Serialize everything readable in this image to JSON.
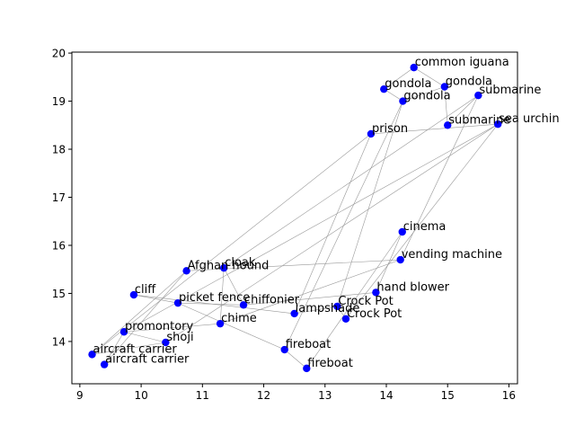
{
  "chart_data": {
    "type": "scatter",
    "title": "",
    "xlabel": "",
    "ylabel": "",
    "xlim": [
      8.87,
      16.14
    ],
    "ylim": [
      13.12,
      20.02
    ],
    "xticks": [
      9,
      10,
      11,
      12,
      13,
      14,
      15,
      16
    ],
    "yticks": [
      14,
      15,
      16,
      17,
      18,
      19,
      20
    ],
    "grid": false,
    "legend": "none",
    "point_color": "#0000ff",
    "edge_color": "#999999",
    "points": [
      {
        "label": "common iguana",
        "x": 14.45,
        "y": 19.7
      },
      {
        "label": "gondola",
        "x": 14.95,
        "y": 19.3
      },
      {
        "label": "gondola",
        "x": 13.96,
        "y": 19.25
      },
      {
        "label": "gondola",
        "x": 14.27,
        "y": 19.0
      },
      {
        "label": "submarine",
        "x": 15.5,
        "y": 19.12
      },
      {
        "label": "submarine",
        "x": 15.0,
        "y": 18.5
      },
      {
        "label": "sea urchin",
        "x": 15.82,
        "y": 18.52
      },
      {
        "label": "prison",
        "x": 13.75,
        "y": 18.32
      },
      {
        "label": "cinema",
        "x": 14.26,
        "y": 16.28
      },
      {
        "label": "vending machine",
        "x": 14.23,
        "y": 15.7
      },
      {
        "label": "hand blower",
        "x": 13.83,
        "y": 15.02
      },
      {
        "label": "Crock Pot",
        "x": 13.2,
        "y": 14.73
      },
      {
        "label": "Crock Pot",
        "x": 13.34,
        "y": 14.47
      },
      {
        "label": "lampshade",
        "x": 12.5,
        "y": 14.58
      },
      {
        "label": "chiffonier",
        "x": 11.67,
        "y": 14.76
      },
      {
        "label": "cloak",
        "x": 11.35,
        "y": 15.53
      },
      {
        "label": "Afghan hound",
        "x": 10.74,
        "y": 15.47
      },
      {
        "label": "cliff",
        "x": 9.88,
        "y": 14.97
      },
      {
        "label": "picket fence",
        "x": 10.6,
        "y": 14.8
      },
      {
        "label": "chime",
        "x": 11.29,
        "y": 14.37
      },
      {
        "label": "promontory",
        "x": 9.72,
        "y": 14.2
      },
      {
        "label": "shoji",
        "x": 10.4,
        "y": 13.98
      },
      {
        "label": "fireboat",
        "x": 12.34,
        "y": 13.83
      },
      {
        "label": "fireboat",
        "x": 12.7,
        "y": 13.44
      },
      {
        "label": "aircraft carrier",
        "x": 9.2,
        "y": 13.73
      },
      {
        "label": "aircraft carrier",
        "x": 9.4,
        "y": 13.52
      }
    ],
    "edges": [
      [
        0,
        1
      ],
      [
        0,
        2
      ],
      [
        2,
        3
      ],
      [
        1,
        3
      ],
      [
        1,
        5
      ],
      [
        5,
        4
      ],
      [
        4,
        9
      ],
      [
        6,
        7
      ],
      [
        6,
        12
      ],
      [
        6,
        20
      ],
      [
        6,
        21
      ],
      [
        3,
        22
      ],
      [
        3,
        11
      ],
      [
        7,
        13
      ],
      [
        7,
        24
      ],
      [
        12,
        11
      ],
      [
        23,
        8
      ],
      [
        8,
        10
      ],
      [
        10,
        14
      ],
      [
        11,
        13
      ],
      [
        13,
        17
      ],
      [
        14,
        18
      ],
      [
        15,
        19
      ],
      [
        15,
        14
      ],
      [
        16,
        25
      ],
      [
        16,
        24
      ],
      [
        17,
        18
      ],
      [
        18,
        22
      ],
      [
        19,
        20
      ],
      [
        19,
        9
      ],
      [
        20,
        21
      ],
      [
        20,
        25
      ],
      [
        21,
        24
      ],
      [
        22,
        23
      ],
      [
        9,
        16
      ],
      [
        4,
        15
      ]
    ]
  }
}
